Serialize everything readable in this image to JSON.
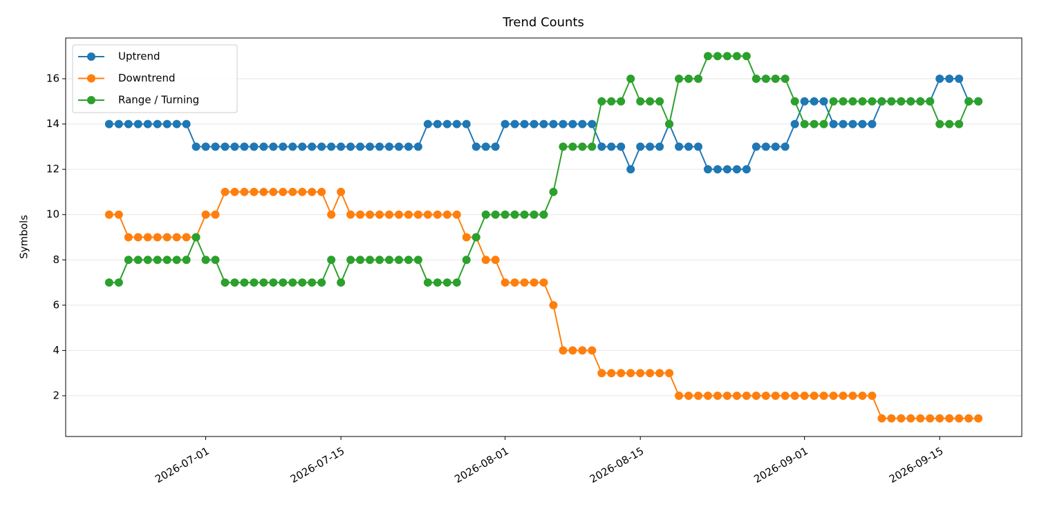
{
  "chart_data": {
    "type": "line",
    "title": "Trend Counts",
    "ylabel": "Symbols",
    "x": [
      "2026-06-21",
      "2026-06-22",
      "2026-06-23",
      "2026-06-24",
      "2026-06-25",
      "2026-06-26",
      "2026-06-27",
      "2026-06-28",
      "2026-06-29",
      "2026-06-30",
      "2026-07-01",
      "2026-07-02",
      "2026-07-03",
      "2026-07-04",
      "2026-07-05",
      "2026-07-06",
      "2026-07-07",
      "2026-07-08",
      "2026-07-09",
      "2026-07-10",
      "2026-07-11",
      "2026-07-12",
      "2026-07-13",
      "2026-07-14",
      "2026-07-15",
      "2026-07-16",
      "2026-07-17",
      "2026-07-18",
      "2026-07-19",
      "2026-07-20",
      "2026-07-21",
      "2026-07-22",
      "2026-07-23",
      "2026-07-24",
      "2026-07-25",
      "2026-07-26",
      "2026-07-27",
      "2026-07-28",
      "2026-07-29",
      "2026-07-30",
      "2026-07-31",
      "2026-08-01",
      "2026-08-02",
      "2026-08-03",
      "2026-08-04",
      "2026-08-05",
      "2026-08-06",
      "2026-08-07",
      "2026-08-08",
      "2026-08-09",
      "2026-08-10",
      "2026-08-11",
      "2026-08-12",
      "2026-08-13",
      "2026-08-14",
      "2026-08-15",
      "2026-08-16",
      "2026-08-17",
      "2026-08-18",
      "2026-08-19",
      "2026-08-20",
      "2026-08-21",
      "2026-08-22",
      "2026-08-23",
      "2026-08-24",
      "2026-08-25",
      "2026-08-26",
      "2026-08-27",
      "2026-08-28",
      "2026-08-29",
      "2026-08-30",
      "2026-08-31",
      "2026-09-01",
      "2026-09-02",
      "2026-09-03",
      "2026-09-04",
      "2026-09-05",
      "2026-09-06",
      "2026-09-07",
      "2026-09-08",
      "2026-09-09",
      "2026-09-10",
      "2026-09-11",
      "2026-09-12",
      "2026-09-13",
      "2026-09-14",
      "2026-09-15",
      "2026-09-16",
      "2026-09-17",
      "2026-09-18",
      "2026-09-19"
    ],
    "series": [
      {
        "name": "Uptrend",
        "color": "#1f77b4",
        "values": [
          14,
          14,
          14,
          14,
          14,
          14,
          14,
          14,
          14,
          13,
          13,
          13,
          13,
          13,
          13,
          13,
          13,
          13,
          13,
          13,
          13,
          13,
          13,
          13,
          13,
          13,
          13,
          13,
          13,
          13,
          13,
          13,
          13,
          14,
          14,
          14,
          14,
          14,
          13,
          13,
          13,
          14,
          14,
          14,
          14,
          14,
          14,
          14,
          14,
          14,
          14,
          13,
          13,
          13,
          12,
          13,
          13,
          13,
          14,
          13,
          13,
          13,
          12,
          12,
          12,
          12,
          12,
          13,
          13,
          13,
          13,
          14,
          15,
          15,
          15,
          14,
          14,
          14,
          14,
          14,
          15,
          15,
          15,
          15,
          15,
          15,
          16,
          16,
          16,
          15,
          15
        ]
      },
      {
        "name": "Downtrend",
        "color": "#ff7f0e",
        "values": [
          10,
          10,
          9,
          9,
          9,
          9,
          9,
          9,
          9,
          9,
          10,
          10,
          11,
          11,
          11,
          11,
          11,
          11,
          11,
          11,
          11,
          11,
          11,
          10,
          11,
          10,
          10,
          10,
          10,
          10,
          10,
          10,
          10,
          10,
          10,
          10,
          10,
          9,
          9,
          8,
          8,
          7,
          7,
          7,
          7,
          7,
          6,
          4,
          4,
          4,
          4,
          3,
          3,
          3,
          3,
          3,
          3,
          3,
          3,
          2,
          2,
          2,
          2,
          2,
          2,
          2,
          2,
          2,
          2,
          2,
          2,
          2,
          2,
          2,
          2,
          2,
          2,
          2,
          2,
          2,
          1,
          1,
          1,
          1,
          1,
          1,
          1,
          1,
          1,
          1,
          1
        ]
      },
      {
        "name": "Range / Turning",
        "color": "#2ca02c",
        "values": [
          7,
          7,
          8,
          8,
          8,
          8,
          8,
          8,
          8,
          9,
          8,
          8,
          7,
          7,
          7,
          7,
          7,
          7,
          7,
          7,
          7,
          7,
          7,
          8,
          7,
          8,
          8,
          8,
          8,
          8,
          8,
          8,
          8,
          7,
          7,
          7,
          7,
          8,
          9,
          10,
          10,
          10,
          10,
          10,
          10,
          10,
          11,
          13,
          13,
          13,
          13,
          15,
          15,
          15,
          16,
          15,
          15,
          15,
          14,
          16,
          16,
          16,
          17,
          17,
          17,
          17,
          17,
          16,
          16,
          16,
          16,
          15,
          14,
          14,
          14,
          15,
          15,
          15,
          15,
          15,
          15,
          15,
          15,
          15,
          15,
          15,
          14,
          14,
          14,
          15,
          15
        ]
      }
    ],
    "xlim": [
      "2026-06-16T12",
      "2026-09-23T12"
    ],
    "xticks": [
      "2026-07-01",
      "2026-07-15",
      "2026-08-01",
      "2026-08-15",
      "2026-09-01",
      "2026-09-15"
    ],
    "ylim": [
      0.2,
      17.8
    ],
    "yticks": [
      2,
      4,
      6,
      8,
      10,
      12,
      14,
      16
    ],
    "grid": "y",
    "legend": "upper left"
  }
}
